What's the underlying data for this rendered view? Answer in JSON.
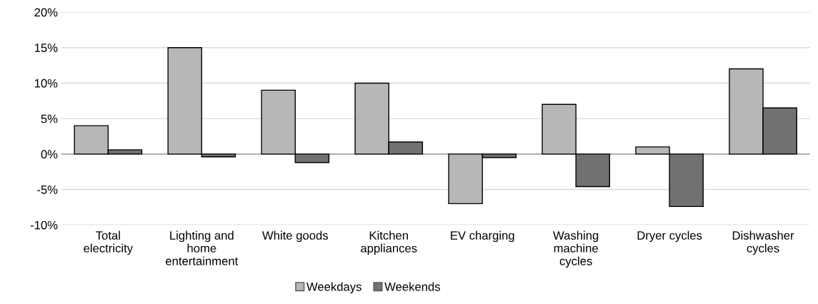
{
  "chart_data": {
    "type": "bar",
    "categories": [
      "Total\nelectricity",
      "Lighting and\nhome\nentertainment",
      "White goods",
      "Kitchen\nappliances",
      "EV charging",
      "Washing\nmachine\ncycles",
      "Dryer cycles",
      "Dishwasher\ncycles"
    ],
    "series": [
      {
        "name": "Weekdays",
        "color": "#b7b7b7",
        "values": [
          4,
          15,
          9,
          10,
          -7,
          7,
          1,
          12
        ]
      },
      {
        "name": "Weekends",
        "color": "#717171",
        "values": [
          0.6,
          -0.4,
          -1.2,
          1.7,
          -0.5,
          -4.6,
          -7.4,
          6.5
        ]
      }
    ],
    "ylim": [
      -10,
      20
    ],
    "yticks": [
      {
        "value": -10,
        "label": "-10%"
      },
      {
        "value": -5,
        "label": "-5%"
      },
      {
        "value": 0,
        "label": "0%"
      },
      {
        "value": 5,
        "label": "5%"
      },
      {
        "value": 10,
        "label": "10%"
      },
      {
        "value": 15,
        "label": "15%"
      },
      {
        "value": 20,
        "label": "20%"
      }
    ],
    "grid": "y",
    "legend": "bottom"
  }
}
